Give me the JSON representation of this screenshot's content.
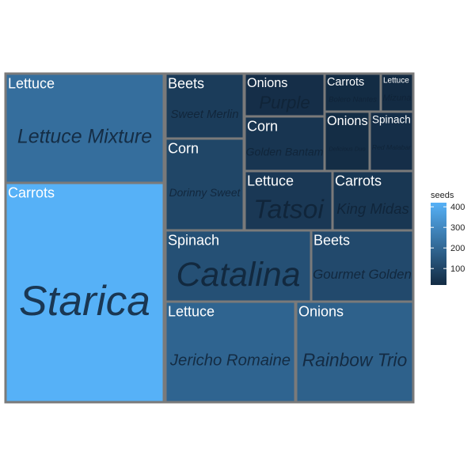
{
  "chart_data": {
    "type": "treemap",
    "value_field": "seeds",
    "legend": {
      "title": "seeds",
      "ticks": [
        100,
        200,
        300,
        400
      ],
      "range": [
        20,
        420
      ],
      "color_low": "#132b43",
      "color_high": "#56b1f7",
      "placement": "right"
    },
    "tiles": [
      {
        "group": "Carrots",
        "variety": "Starica",
        "seeds": 420
      },
      {
        "group": "Lettuce",
        "variety": "Lettuce Mixture",
        "seeds": 220
      },
      {
        "group": "Lettuce",
        "variety": "Jericho Romaine",
        "seeds": 190
      },
      {
        "group": "Onions",
        "variety": "Rainbow Trio",
        "seeds": 180
      },
      {
        "group": "Spinach",
        "variety": "Catalina",
        "seeds": 130
      },
      {
        "group": "Beets",
        "variety": "Gourmet Golden",
        "seeds": 110
      },
      {
        "group": "Corn",
        "variety": "Dorinny Sweet",
        "seeds": 100
      },
      {
        "group": "Beets",
        "variety": "Sweet Merlin",
        "seeds": 70
      },
      {
        "group": "Lettuce",
        "variety": "Tatsoi",
        "seeds": 60
      },
      {
        "group": "Carrots",
        "variety": "King Midas",
        "seeds": 55
      },
      {
        "group": "Corn",
        "variety": "Golden Bantam",
        "seeds": 50
      },
      {
        "group": "Onions",
        "variety": "Purple",
        "seeds": 30
      },
      {
        "group": "Onions",
        "variety": "Delicious Duo",
        "seeds": 25
      },
      {
        "group": "Spinach",
        "variety": "Red Malabar",
        "seeds": 30
      },
      {
        "group": "Carrots",
        "variety": "Bolero Nantes",
        "seeds": 22
      },
      {
        "group": "Lettuce",
        "variety": "Mizuna",
        "seeds": 18
      }
    ]
  }
}
